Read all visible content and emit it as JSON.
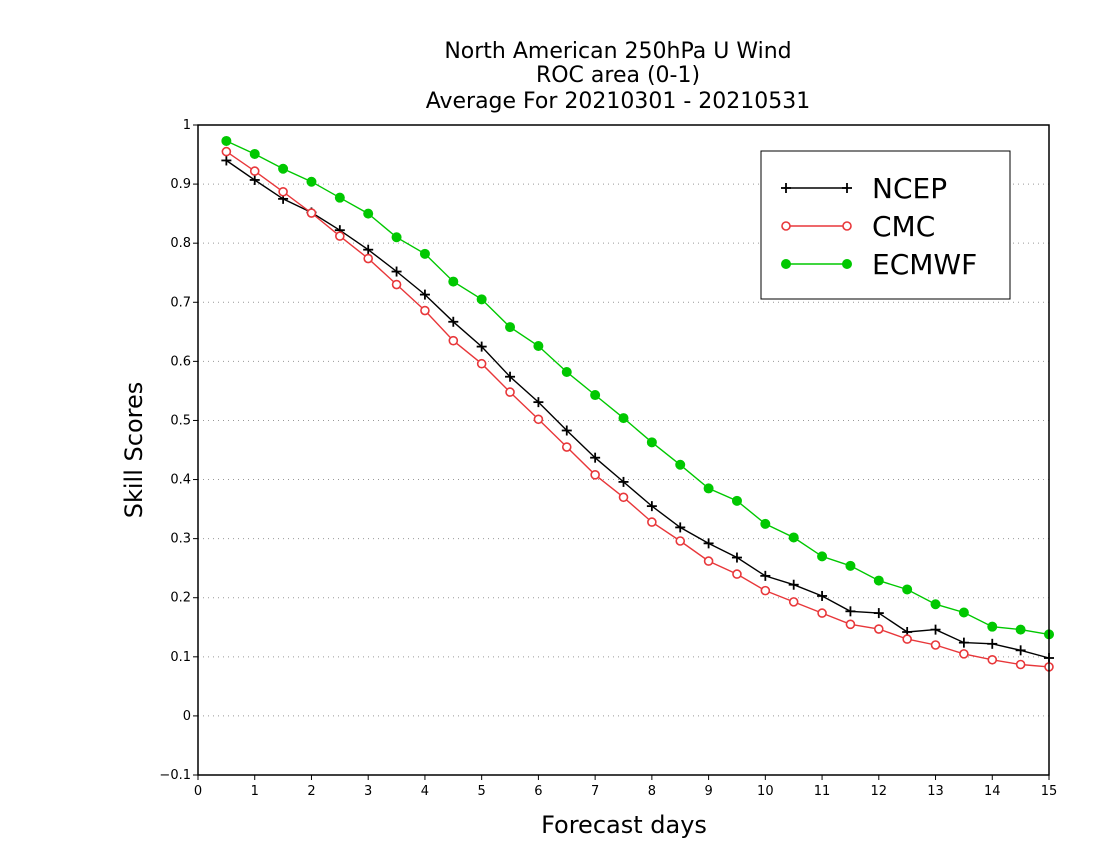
{
  "chart_data": {
    "type": "line",
    "title_lines": [
      "North American 250hPa U Wind",
      "ROC area (0-1)",
      "Average For 20210301 - 20210531"
    ],
    "xlabel": "Forecast days",
    "ylabel": "Skill Scores",
    "xlim": [
      0,
      15
    ],
    "ylim": [
      -0.1,
      1
    ],
    "x_ticks": [
      "0",
      "1",
      "2",
      "3",
      "4",
      "5",
      "6",
      "7",
      "8",
      "9",
      "10",
      "11",
      "12",
      "13",
      "14",
      "15"
    ],
    "y_ticks": [
      "−0.1",
      "0",
      "0.1",
      "0.2",
      "0.3",
      "0.4",
      "0.5",
      "0.6",
      "0.7",
      "0.8",
      "0.9",
      "1"
    ],
    "grid": "horizontal dotted",
    "legend_position": "top-right",
    "x": [
      0.5,
      1,
      1.5,
      2,
      2.5,
      3,
      3.5,
      4,
      4.5,
      5,
      5.5,
      6,
      6.5,
      7,
      7.5,
      8,
      8.5,
      9,
      9.5,
      10,
      10.5,
      11,
      11.5,
      12,
      12.5,
      13,
      13.5,
      14,
      14.5,
      15
    ],
    "series": [
      {
        "name": "NCEP",
        "color": "#000000",
        "marker": "plus",
        "values": [
          0.94,
          0.907,
          0.875,
          0.852,
          0.822,
          0.789,
          0.752,
          0.713,
          0.667,
          0.625,
          0.574,
          0.531,
          0.483,
          0.437,
          0.396,
          0.355,
          0.319,
          0.292,
          0.268,
          0.237,
          0.222,
          0.203,
          0.177,
          0.174,
          0.142,
          0.146,
          0.124,
          0.122,
          0.111,
          0.098
        ]
      },
      {
        "name": "CMC",
        "color": "#e8373a",
        "marker": "open-circle",
        "values": [
          0.955,
          0.922,
          0.887,
          0.851,
          0.812,
          0.774,
          0.73,
          0.686,
          0.635,
          0.596,
          0.548,
          0.502,
          0.455,
          0.408,
          0.37,
          0.328,
          0.296,
          0.262,
          0.24,
          0.212,
          0.193,
          0.174,
          0.155,
          0.147,
          0.13,
          0.12,
          0.105,
          0.095,
          0.087,
          0.083
        ]
      },
      {
        "name": "ECMWF",
        "color": "#00c800",
        "marker": "filled-circle",
        "values": [
          0.973,
          0.951,
          0.926,
          0.904,
          0.877,
          0.85,
          0.81,
          0.782,
          0.735,
          0.705,
          0.658,
          0.626,
          0.582,
          0.543,
          0.504,
          0.463,
          0.425,
          0.385,
          0.364,
          0.325,
          0.302,
          0.27,
          0.254,
          0.229,
          0.214,
          0.189,
          0.175,
          0.151,
          0.146,
          0.138
        ]
      }
    ]
  }
}
